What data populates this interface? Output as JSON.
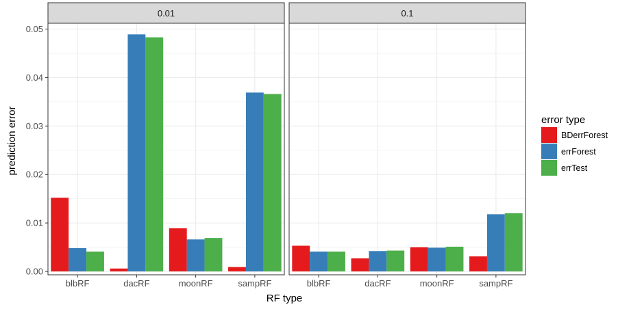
{
  "chart_data": {
    "type": "bar",
    "xlabel": "RF type",
    "ylabel": "prediction error",
    "ylim": [
      -0.0007,
      0.0512
    ],
    "yticks": [
      "0.00",
      "0.01",
      "0.02",
      "0.03",
      "0.04",
      "0.05"
    ],
    "ytick_values": [
      0,
      0.01,
      0.02,
      0.03,
      0.04,
      0.05
    ],
    "categories": [
      "blbRF",
      "dacRF",
      "moonRF",
      "sampRF"
    ],
    "legend": {
      "title": "error type",
      "position": "right",
      "entries": [
        "BDerrForest",
        "errForest",
        "errTest"
      ]
    },
    "series_colors": [
      "#E41A1C",
      "#377EB8",
      "#4DAF4A"
    ],
    "grid": true,
    "panels": [
      {
        "label": "0.01",
        "series": [
          {
            "name": "BDerrForest",
            "values": [
              0.0152,
              0.0006,
              0.0089,
              0.0009
            ]
          },
          {
            "name": "errForest",
            "values": [
              0.0048,
              0.0489,
              0.0066,
              0.0369
            ]
          },
          {
            "name": "errTest",
            "values": [
              0.0041,
              0.0483,
              0.0069,
              0.0366
            ]
          }
        ]
      },
      {
        "label": "0.1",
        "series": [
          {
            "name": "BDerrForest",
            "values": [
              0.0053,
              0.0027,
              0.005,
              0.0031
            ]
          },
          {
            "name": "errForest",
            "values": [
              0.0041,
              0.0042,
              0.0049,
              0.0118
            ]
          },
          {
            "name": "errTest",
            "values": [
              0.0041,
              0.0043,
              0.0051,
              0.012
            ]
          }
        ]
      }
    ]
  }
}
